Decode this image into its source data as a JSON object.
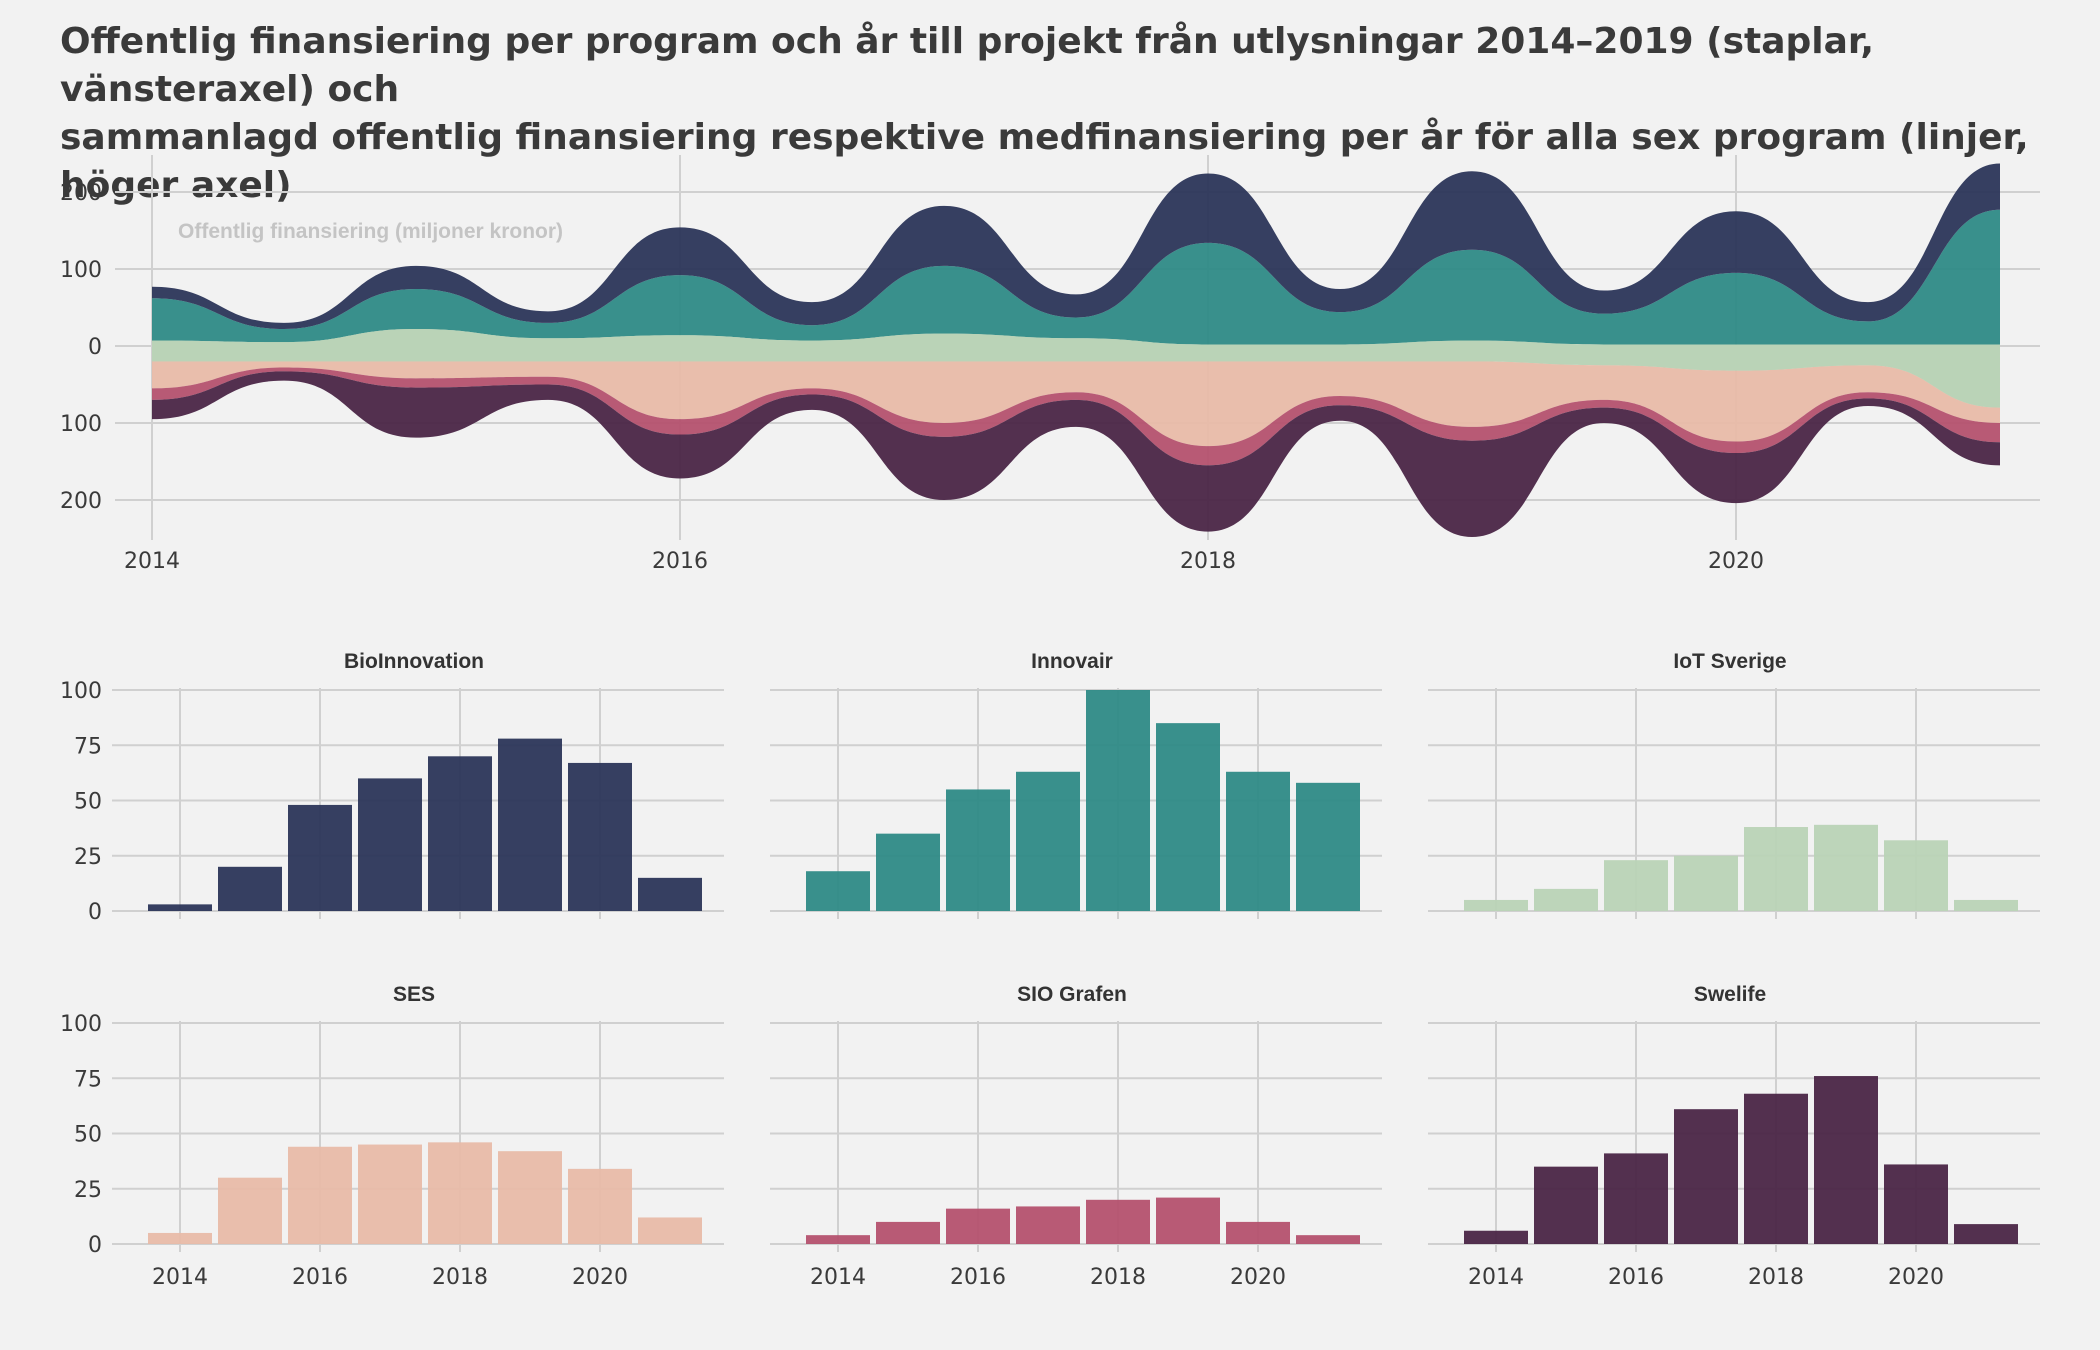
{
  "title": {
    "line1": "Offentlig finansiering per program och år till projekt från utlysningar 2014–2019 (staplar, vänsteraxel) och",
    "line2": "sammanlagd offentlig finansiering respektive medfinansiering per år för alla sex program (linjer, höger axel)"
  },
  "chart_data": [
    {
      "type": "area",
      "label": "Offentlig finansiering (miljoner kronor)",
      "x_ticks": [
        "2014",
        "2016",
        "2018",
        "2020"
      ],
      "y_ticks_upper": [
        "200",
        "100",
        "0"
      ],
      "y_ticks_lower": [
        "100",
        "200"
      ],
      "xlim": [
        2014,
        2021
      ],
      "ylim": [
        -250,
        250
      ],
      "grid": true,
      "x": [
        2014,
        2014.5,
        2015,
        2015.5,
        2016,
        2016.5,
        2017,
        2017.5,
        2018,
        2018.5,
        2019,
        2019.5,
        2020,
        2020.5,
        2021
      ],
      "series": [
        {
          "name": "IoT Sverige",
          "color": "#b9d3b6",
          "side": "above",
          "values": [
            5,
            3,
            20,
            8,
            12,
            5,
            14,
            8,
            0,
            0,
            5,
            -5,
            -12,
            -5,
            -60
          ]
        },
        {
          "name": "Innovair",
          "color": "#2e8a86",
          "side": "above",
          "values": [
            55,
            17,
            52,
            20,
            78,
            20,
            88,
            27,
            132,
            42,
            118,
            40,
            93,
            30,
            175
          ]
        },
        {
          "name": "BioInnovation",
          "color": "#2b3558",
          "side": "above",
          "values": [
            15,
            8,
            30,
            15,
            62,
            30,
            78,
            30,
            90,
            30,
            102,
            30,
            80,
            25,
            60
          ]
        },
        {
          "name": "SES",
          "color": "#e8bba8",
          "side": "below",
          "values": [
            35,
            8,
            22,
            20,
            75,
            35,
            80,
            40,
            110,
            45,
            85,
            45,
            92,
            35,
            20
          ]
        },
        {
          "name": "SIO Grafen",
          "color": "#b4516e",
          "side": "below",
          "values": [
            15,
            5,
            12,
            10,
            20,
            8,
            18,
            10,
            25,
            12,
            18,
            10,
            15,
            8,
            25
          ]
        },
        {
          "name": "Swelife",
          "color": "#4a2546",
          "side": "below",
          "values": [
            25,
            12,
            65,
            20,
            57,
            20,
            82,
            35,
            86,
            20,
            125,
            20,
            65,
            10,
            30
          ]
        }
      ]
    },
    {
      "type": "bar",
      "categories": [
        2014,
        2015,
        2016,
        2017,
        2018,
        2019,
        2020,
        2021
      ],
      "x_ticks": [
        "2014",
        "2016",
        "2018",
        "2020"
      ],
      "y_ticks": [
        "0",
        "25",
        "50",
        "75",
        "100"
      ],
      "ylim": [
        0,
        100
      ],
      "grid": true,
      "panels": [
        {
          "title": "BioInnovation",
          "color": "#2b3558",
          "values": [
            3,
            20,
            48,
            60,
            70,
            78,
            67,
            15
          ]
        },
        {
          "title": "Innovair",
          "color": "#2e8a86",
          "values": [
            18,
            35,
            55,
            63,
            100,
            85,
            63,
            58
          ]
        },
        {
          "title": "IoT Sverige",
          "color": "#b9d3b6",
          "values": [
            5,
            10,
            23,
            25,
            38,
            39,
            32,
            5
          ]
        },
        {
          "title": "SES",
          "color": "#e8bba8",
          "values": [
            5,
            30,
            44,
            45,
            46,
            42,
            34,
            12
          ]
        },
        {
          "title": "SIO Grafen",
          "color": "#b4516e",
          "values": [
            4,
            10,
            16,
            17,
            20,
            21,
            10,
            4
          ]
        },
        {
          "title": "Swelife",
          "color": "#4a2546",
          "values": [
            6,
            35,
            41,
            61,
            68,
            76,
            36,
            9
          ]
        }
      ]
    }
  ]
}
